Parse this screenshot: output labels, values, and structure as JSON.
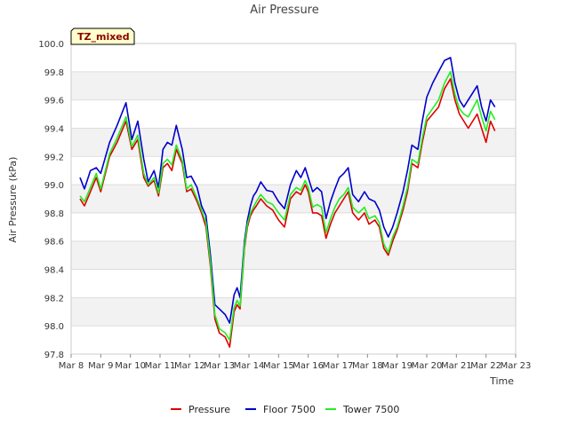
{
  "chart_data": {
    "type": "line",
    "title": "Air Pressure",
    "xlabel": "Time",
    "ylabel": "Air Pressure (kPa)",
    "badge": "TZ_mixed",
    "ylim": [
      97.8,
      100.0
    ],
    "xlim": [
      0,
      15
    ],
    "y_ticks": [
      "97.8",
      "98.0",
      "98.2",
      "98.4",
      "98.6",
      "98.8",
      "99.0",
      "99.2",
      "99.4",
      "99.6",
      "99.8",
      "100.0"
    ],
    "x_ticks": [
      "Mar 8",
      "Mar 9",
      "Mar 10",
      "Mar 11",
      "Mar 12",
      "Mar 13",
      "Mar 14",
      "Mar 15",
      "Mar 16",
      "Mar 17",
      "Mar 18",
      "Mar 19",
      "Mar 20",
      "Mar 21",
      "Mar 22",
      "Mar 23"
    ],
    "legend_position": "bottom-center",
    "band_color": "#f2f2f2",
    "series": [
      {
        "name": "Pressure",
        "color": "#dd0000",
        "x": [
          0.3,
          0.45,
          0.65,
          0.85,
          1.0,
          1.3,
          1.55,
          1.85,
          2.05,
          2.25,
          2.45,
          2.6,
          2.8,
          2.95,
          3.1,
          3.25,
          3.4,
          3.55,
          3.75,
          3.9,
          4.05,
          4.25,
          4.4,
          4.55,
          4.7,
          4.85,
          5.0,
          5.2,
          5.35,
          5.5,
          5.6,
          5.7,
          5.85,
          5.95,
          6.05,
          6.15,
          6.25,
          6.4,
          6.6,
          6.8,
          7.0,
          7.2,
          7.4,
          7.6,
          7.75,
          7.9,
          8.0,
          8.15,
          8.3,
          8.45,
          8.6,
          8.75,
          8.9,
          9.05,
          9.2,
          9.35,
          9.5,
          9.7,
          9.9,
          10.05,
          10.25,
          10.4,
          10.55,
          10.7,
          10.85,
          11.0,
          11.2,
          11.35,
          11.5,
          11.7,
          11.85,
          12.0,
          12.2,
          12.4,
          12.6,
          12.8,
          12.95,
          13.1,
          13.25,
          13.4,
          13.55,
          13.7,
          13.85,
          14.0,
          14.15,
          14.3
        ],
        "values": [
          98.9,
          98.85,
          98.95,
          99.05,
          98.95,
          99.2,
          99.3,
          99.45,
          99.25,
          99.32,
          99.05,
          98.99,
          99.03,
          98.92,
          99.12,
          99.15,
          99.1,
          99.25,
          99.15,
          98.95,
          98.97,
          98.88,
          98.8,
          98.7,
          98.42,
          98.05,
          97.95,
          97.92,
          97.85,
          98.1,
          98.15,
          98.12,
          98.55,
          98.7,
          98.78,
          98.82,
          98.85,
          98.9,
          98.85,
          98.82,
          98.75,
          98.7,
          98.9,
          98.95,
          98.93,
          99.0,
          98.95,
          98.8,
          98.8,
          98.78,
          98.62,
          98.72,
          98.8,
          98.85,
          98.9,
          98.95,
          98.8,
          98.75,
          98.8,
          98.72,
          98.75,
          98.7,
          98.55,
          98.5,
          98.6,
          98.68,
          98.82,
          98.95,
          99.15,
          99.12,
          99.3,
          99.45,
          99.5,
          99.55,
          99.68,
          99.75,
          99.6,
          99.5,
          99.45,
          99.4,
          99.45,
          99.5,
          99.4,
          99.3,
          99.45,
          99.38
        ]
      },
      {
        "name": "Floor 7500",
        "color": "#0000cc",
        "x": [
          0.3,
          0.45,
          0.65,
          0.85,
          1.0,
          1.3,
          1.55,
          1.85,
          2.05,
          2.25,
          2.45,
          2.6,
          2.8,
          2.95,
          3.1,
          3.25,
          3.4,
          3.55,
          3.75,
          3.9,
          4.05,
          4.25,
          4.4,
          4.55,
          4.7,
          4.85,
          5.0,
          5.2,
          5.35,
          5.5,
          5.6,
          5.7,
          5.85,
          5.95,
          6.05,
          6.15,
          6.25,
          6.4,
          6.6,
          6.8,
          7.0,
          7.2,
          7.4,
          7.6,
          7.75,
          7.9,
          8.0,
          8.15,
          8.3,
          8.45,
          8.6,
          8.75,
          8.9,
          9.05,
          9.2,
          9.35,
          9.5,
          9.7,
          9.9,
          10.05,
          10.25,
          10.4,
          10.55,
          10.7,
          10.85,
          11.0,
          11.2,
          11.35,
          11.5,
          11.7,
          11.85,
          12.0,
          12.2,
          12.4,
          12.6,
          12.8,
          12.95,
          13.1,
          13.25,
          13.4,
          13.55,
          13.7,
          13.85,
          14.0,
          14.15,
          14.3
        ],
        "values": [
          99.05,
          98.97,
          99.1,
          99.12,
          99.08,
          99.3,
          99.42,
          99.58,
          99.32,
          99.45,
          99.18,
          99.02,
          99.1,
          98.98,
          99.25,
          99.3,
          99.28,
          99.42,
          99.25,
          99.05,
          99.06,
          98.98,
          98.85,
          98.78,
          98.5,
          98.15,
          98.12,
          98.08,
          98.02,
          98.22,
          98.27,
          98.2,
          98.6,
          98.75,
          98.85,
          98.92,
          98.95,
          99.02,
          98.96,
          98.95,
          98.88,
          98.83,
          99.0,
          99.1,
          99.05,
          99.12,
          99.05,
          98.95,
          98.98,
          98.95,
          98.76,
          98.88,
          98.97,
          99.05,
          99.08,
          99.12,
          98.93,
          98.88,
          98.95,
          98.9,
          98.88,
          98.82,
          98.7,
          98.63,
          98.7,
          98.8,
          98.95,
          99.1,
          99.28,
          99.25,
          99.45,
          99.62,
          99.72,
          99.8,
          99.88,
          99.9,
          99.72,
          99.6,
          99.55,
          99.6,
          99.65,
          99.7,
          99.55,
          99.45,
          99.6,
          99.55
        ]
      },
      {
        "name": "Tower 7500",
        "color": "#22ee22",
        "x": [
          0.3,
          0.45,
          0.65,
          0.85,
          1.0,
          1.3,
          1.55,
          1.85,
          2.05,
          2.25,
          2.45,
          2.6,
          2.8,
          2.95,
          3.1,
          3.25,
          3.4,
          3.55,
          3.75,
          3.9,
          4.05,
          4.25,
          4.4,
          4.55,
          4.7,
          4.85,
          5.0,
          5.2,
          5.35,
          5.5,
          5.6,
          5.7,
          5.85,
          5.95,
          6.05,
          6.15,
          6.25,
          6.4,
          6.6,
          6.8,
          7.0,
          7.2,
          7.4,
          7.6,
          7.75,
          7.9,
          8.0,
          8.15,
          8.3,
          8.45,
          8.6,
          8.75,
          8.9,
          9.05,
          9.2,
          9.35,
          9.5,
          9.7,
          9.9,
          10.05,
          10.25,
          10.4,
          10.55,
          10.7,
          10.85,
          11.0,
          11.2,
          11.35,
          11.5,
          11.7,
          11.85,
          12.0,
          12.2,
          12.4,
          12.6,
          12.8,
          12.95,
          13.1,
          13.25,
          13.4,
          13.55,
          13.7,
          13.85,
          14.0,
          14.15,
          14.3
        ],
        "values": [
          98.92,
          98.88,
          98.98,
          99.08,
          98.97,
          99.22,
          99.33,
          99.48,
          99.27,
          99.35,
          99.08,
          99.0,
          99.05,
          98.94,
          99.15,
          99.18,
          99.14,
          99.28,
          99.17,
          98.97,
          99.0,
          98.9,
          98.82,
          98.73,
          98.45,
          98.08,
          97.98,
          97.95,
          97.9,
          98.13,
          98.18,
          98.14,
          98.57,
          98.72,
          98.8,
          98.84,
          98.88,
          98.93,
          98.88,
          98.86,
          98.8,
          98.75,
          98.93,
          98.98,
          98.96,
          99.03,
          98.98,
          98.84,
          98.86,
          98.84,
          98.66,
          98.76,
          98.84,
          98.9,
          98.93,
          98.98,
          98.84,
          98.8,
          98.84,
          98.76,
          98.78,
          98.73,
          98.58,
          98.52,
          98.63,
          98.7,
          98.85,
          98.98,
          99.18,
          99.15,
          99.33,
          99.48,
          99.54,
          99.6,
          99.72,
          99.8,
          99.64,
          99.54,
          99.5,
          99.48,
          99.54,
          99.6,
          99.48,
          99.38,
          99.52,
          99.46
        ]
      }
    ]
  }
}
